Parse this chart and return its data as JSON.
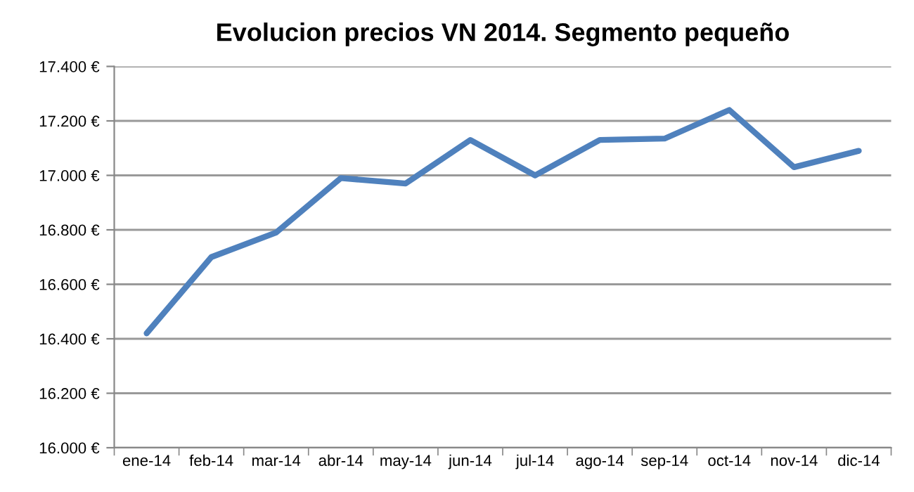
{
  "chart_data": {
    "type": "line",
    "title": "Evolucion precios VN 2014. Segmento pequeño",
    "categories": [
      "ene-14",
      "feb-14",
      "mar-14",
      "abr-14",
      "may-14",
      "jun-14",
      "jul-14",
      "ago-14",
      "sep-14",
      "oct-14",
      "nov-14",
      "dic-14"
    ],
    "series": [
      {
        "color": "#4f81bd",
        "values": [
          16420,
          16700,
          16790,
          16990,
          16970,
          17130,
          17000,
          17130,
          17135,
          17240,
          17030,
          17090
        ]
      }
    ],
    "ylim": [
      16000,
      17400
    ],
    "yticks": [
      {
        "value": 16000,
        "label": "16.000 €"
      },
      {
        "value": 16200,
        "label": "16.200 €"
      },
      {
        "value": 16400,
        "label": "16.400 €"
      },
      {
        "value": 16600,
        "label": "16.600 €"
      },
      {
        "value": 16800,
        "label": "16.800 €"
      },
      {
        "value": 17000,
        "label": "17.000 €"
      },
      {
        "value": 17200,
        "label": "17.200 €"
      },
      {
        "value": 17400,
        "label": "17.400 €"
      }
    ],
    "grid": "y",
    "marker": "none",
    "line_style": "solid"
  }
}
